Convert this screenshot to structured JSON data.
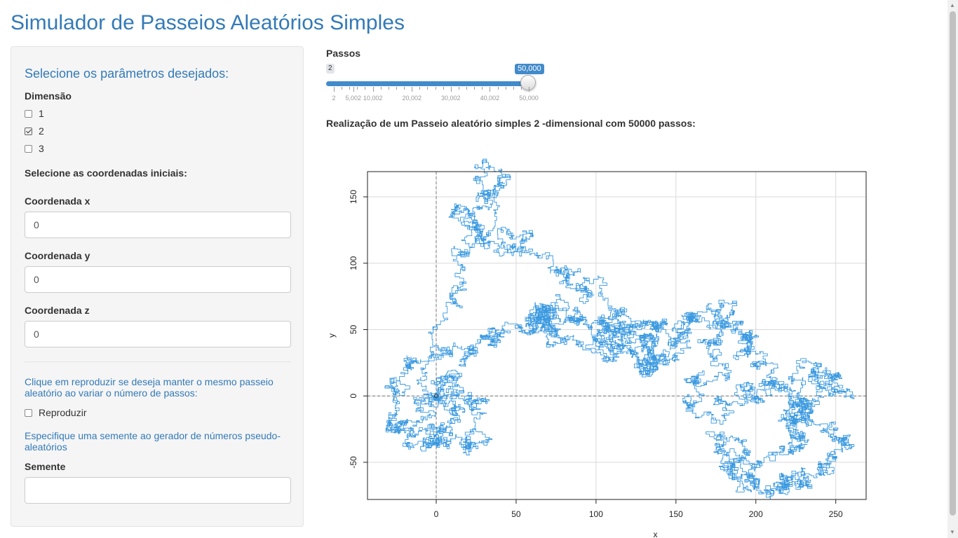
{
  "app": {
    "title": "Simulador de Passeios Aleatórios Simples"
  },
  "sidebar": {
    "heading": "Selecione os parâmetros desejados:",
    "dimension_label": "Dimensão",
    "dimension_options": [
      {
        "label": "1",
        "checked": false
      },
      {
        "label": "2",
        "checked": true
      },
      {
        "label": "3",
        "checked": false
      }
    ],
    "coords_heading": "Selecione as coordenadas iniciais:",
    "coord_x": {
      "label": "Coordenada x",
      "value": "0"
    },
    "coord_y": {
      "label": "Coordenada y",
      "value": "0"
    },
    "coord_z": {
      "label": "Coordenada z",
      "value": "0"
    },
    "reproduce_help": "Clique em reproduzir se deseja manter o mesmo passeio aleatório ao variar o número de passos:",
    "reproduce_label": "Reproduzir",
    "reproduce_checked": false,
    "seed_help": "Especifique uma semente ao gerador de números pseudo-aleatórios",
    "seed_label": "Semente",
    "seed_value": ""
  },
  "slider": {
    "label": "Passos",
    "min_label": "2",
    "value_label": "50,000",
    "min": 2,
    "max": 50000,
    "value": 50000,
    "grid_labels": [
      "2",
      "5,002",
      "10,002",
      "20,002",
      "30,002",
      "40,002",
      "50,000"
    ]
  },
  "plot": {
    "caption": "Realização de um Passeio aleatório simples 2 -dimensional com 50000 passos:"
  },
  "chart_data": {
    "type": "line",
    "title": "",
    "xlabel": "x",
    "ylabel": "y",
    "xlim": [
      -43,
      269
    ],
    "ylim": [
      -78,
      169
    ],
    "x_ticks": [
      0,
      50,
      100,
      150,
      200,
      250
    ],
    "y_ticks": [
      -50,
      0,
      50,
      100,
      150
    ],
    "grid": true,
    "reference_lines": {
      "x": 0,
      "y": 0,
      "style": "dashed"
    },
    "start_point": [
      0,
      0
    ],
    "series": [
      {
        "color": "#3a99e0",
        "x": [
          0,
          8,
          4,
          -10,
          -25,
          -10,
          3,
          10,
          20,
          28,
          18,
          5,
          -12,
          -28,
          -30,
          -15,
          5,
          22,
          35,
          50,
          58,
          72,
          88,
          100,
          112,
          130,
          138,
          132,
          118,
          100,
          85,
          70,
          60,
          68,
          80,
          95,
          110,
          125,
          140,
          148,
          160,
          175,
          188,
          195,
          188,
          200,
          215,
          232,
          250,
          254,
          238,
          228,
          222,
          232,
          250,
          256,
          245,
          230,
          222,
          215,
          200,
          185,
          175,
          180,
          192,
          210,
          222,
          228,
          230,
          210,
          195,
          175,
          158,
          162,
          175,
          180,
          170,
          155,
          140,
          130,
          120,
          110,
          95,
          82,
          70,
          55,
          40,
          25,
          18,
          30,
          45,
          38,
          28,
          15,
          8,
          0
        ],
        "y": [
          0,
          -10,
          -28,
          -35,
          -25,
          -10,
          5,
          12,
          0,
          -20,
          -40,
          -35,
          -28,
          -20,
          5,
          25,
          30,
          38,
          45,
          52,
          50,
          60,
          40,
          38,
          50,
          45,
          30,
          20,
          35,
          48,
          60,
          65,
          66,
          55,
          45,
          52,
          40,
          48,
          55,
          40,
          62,
          65,
          55,
          45,
          28,
          20,
          10,
          25,
          12,
          5,
          8,
          -5,
          -20,
          -15,
          -35,
          -40,
          -55,
          -68,
          -60,
          -70,
          -65,
          -50,
          -30,
          -55,
          -70,
          -45,
          -30,
          -18,
          -5,
          10,
          5,
          -5,
          -8,
          10,
          30,
          45,
          55,
          35,
          25,
          40,
          50,
          60,
          75,
          95,
          105,
          110,
          120,
          130,
          140,
          155,
          165,
          150,
          128,
          110,
          80,
          0
        ]
      }
    ]
  }
}
